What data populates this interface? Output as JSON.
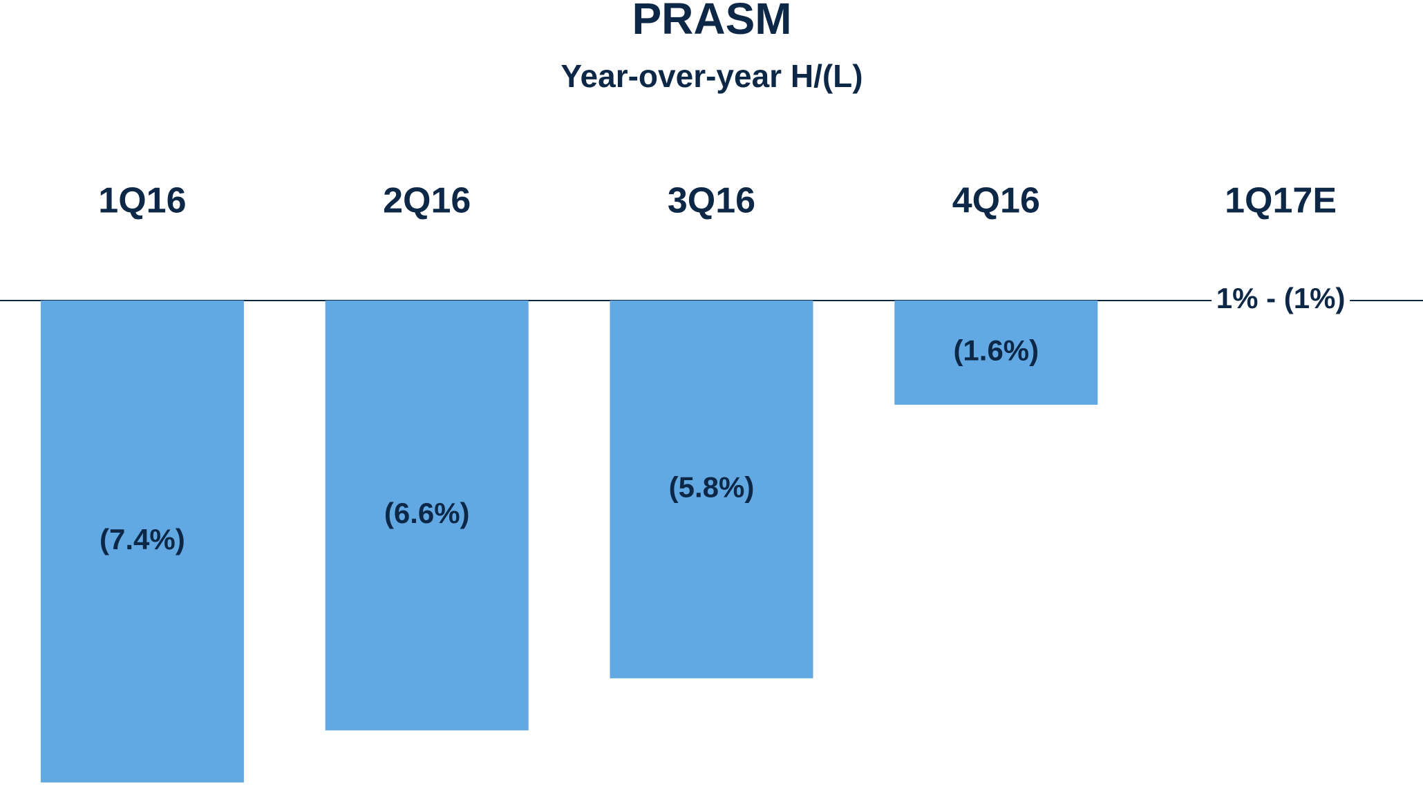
{
  "chart_data": {
    "type": "bar",
    "title": "PRASM",
    "subtitle": "Year-over-year H/(L)",
    "categories": [
      "1Q16",
      "2Q16",
      "3Q16",
      "4Q16",
      "1Q17E"
    ],
    "values": [
      -7.4,
      -6.6,
      -5.8,
      -1.6,
      null
    ],
    "value_labels": [
      "(7.4%)",
      "(6.6%)",
      "(5.8%)",
      "(1.6%)",
      null
    ],
    "annotation": "1% - (1%)",
    "color": "#62a8e2",
    "ylim": [
      -7.5,
      0
    ]
  }
}
